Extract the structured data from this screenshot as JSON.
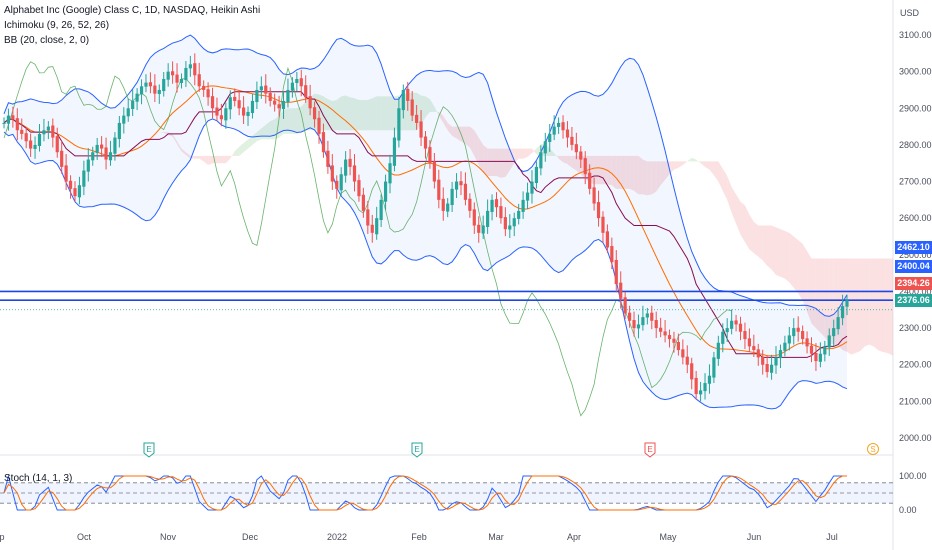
{
  "header": {
    "title": "Alphabet Inc (Google) Class C, 1D, NASDAQ, Heikin Ashi",
    "ichimoku": "Ichimoku (9, 26, 52, 26)",
    "bb": "BB (20, close, 2, 0)",
    "stoch": "Stoch (14, 1, 3)",
    "currency": "USD"
  },
  "price_labels": [
    {
      "text": "2462.10",
      "color": "#2962ff"
    },
    {
      "text": "2400.04",
      "color": "#2962ff"
    },
    {
      "text": "2394.26",
      "color": "#ef5350"
    },
    {
      "text": "2376.06",
      "color": "#26a69a"
    }
  ],
  "events": [
    {
      "label": "E",
      "kind": "earnings",
      "color": "#26a69a",
      "date": "Oct"
    },
    {
      "label": "E",
      "kind": "earnings",
      "color": "#26a69a",
      "date": "Feb"
    },
    {
      "label": "E",
      "kind": "earnings",
      "color": "#ef5350",
      "date": "Apr"
    },
    {
      "label": "S",
      "kind": "split",
      "color": "#f5a623",
      "date": "Jul"
    }
  ],
  "colors": {
    "up": "#26a69a",
    "down": "#ef5350",
    "bb_band": "#2962ff",
    "bb_basis": "#ff6d00",
    "kijun": "#880e4f",
    "lagging": "#43a047",
    "cloud_green": "#c8e6c9",
    "cloud_red": "#f8c9c9",
    "hline": "#1a47e6",
    "stoch_k": "#2962ff",
    "stoch_d": "#ff6d00"
  },
  "chart_data": {
    "type": "candlestick",
    "title": "Alphabet Inc (Google) Class C, 1D, NASDAQ, Heikin Ashi",
    "x_ticks": [
      "p",
      "Oct",
      "Nov",
      "Dec",
      "2022",
      "Feb",
      "Mar",
      "Apr",
      "May",
      "Jun",
      "Jul"
    ],
    "y_ticks": [
      2000,
      2100,
      2200,
      2300,
      2400,
      2500,
      2600,
      2700,
      2800,
      2900,
      3000,
      3100
    ],
    "ylim": [
      1965,
      3130
    ],
    "horizontal_lines": [
      2400.04,
      2376.06
    ],
    "stoch_y_ticks": [
      "100.00",
      "0.00"
    ],
    "stoch_levels": [
      80,
      50,
      20
    ],
    "close_series": [
      2860,
      2880,
      2870,
      2840,
      2830,
      2810,
      2790,
      2800,
      2830,
      2840,
      2850,
      2820,
      2780,
      2740,
      2700,
      2680,
      2660,
      2690,
      2730,
      2760,
      2780,
      2800,
      2790,
      2760,
      2780,
      2820,
      2860,
      2880,
      2900,
      2920,
      2940,
      2960,
      2970,
      2960,
      2940,
      2950,
      2980,
      3000,
      2990,
      2970,
      2980,
      3010,
      3020,
      2990,
      2960,
      2950,
      2930,
      2900,
      2880,
      2870,
      2900,
      2930,
      2920,
      2900,
      2880,
      2890,
      2920,
      2950,
      2960,
      2940,
      2920,
      2910,
      2900,
      2920,
      2950,
      2970,
      2980,
      2960,
      2930,
      2900,
      2870,
      2830,
      2780,
      2740,
      2700,
      2680,
      2720,
      2760,
      2740,
      2700,
      2660,
      2620,
      2580,
      2560,
      2600,
      2650,
      2700,
      2750,
      2820,
      2900,
      2950,
      2920,
      2880,
      2860,
      2820,
      2790,
      2750,
      2700,
      2650,
      2620,
      2640,
      2680,
      2700,
      2690,
      2650,
      2620,
      2580,
      2560,
      2580,
      2620,
      2650,
      2630,
      2600,
      2570,
      2580,
      2600,
      2620,
      2650,
      2670,
      2700,
      2740,
      2780,
      2810,
      2830,
      2850,
      2860,
      2840,
      2820,
      2800,
      2780,
      2760,
      2720,
      2680,
      2640,
      2600,
      2560,
      2520,
      2480,
      2420,
      2380,
      2340,
      2320,
      2300,
      2310,
      2330,
      2340,
      2320,
      2300,
      2290,
      2280,
      2270,
      2260,
      2240,
      2220,
      2200,
      2160,
      2120,
      2130,
      2150,
      2170,
      2220,
      2260,
      2290,
      2300,
      2320,
      2310,
      2290,
      2270,
      2250,
      2240,
      2220,
      2200,
      2180,
      2200,
      2220,
      2240,
      2260,
      2280,
      2300,
      2290,
      2270,
      2250,
      2230,
      2210,
      2230,
      2250,
      2280,
      2300,
      2330,
      2360,
      2376
    ]
  }
}
